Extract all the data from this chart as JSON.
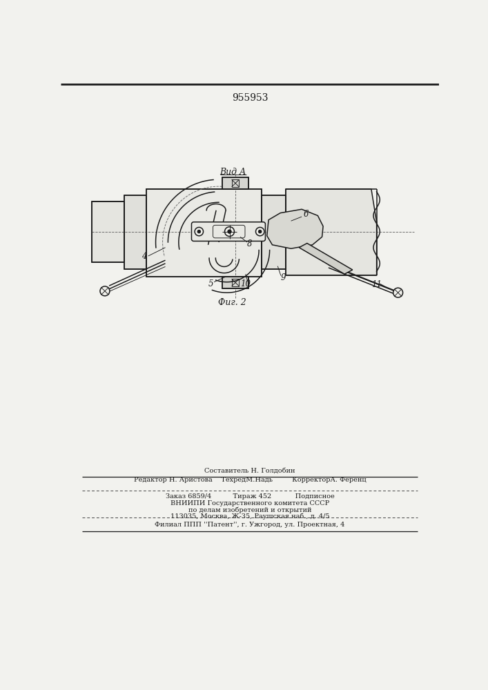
{
  "title": "955953",
  "view_label": "Вид А",
  "fig_label": "Фиг. 2",
  "footer_line1": "Составитель Н. Голдобин",
  "footer_line2": "Редактор Н. Аристова    ТехредМ.Надь         КорректорА. Ференц",
  "footer_line3": "Заказ 6859/4          Тираж 452           Подписное",
  "footer_line4": "ВНИИПИ Государственного комитета СССР",
  "footer_line5": "по делам изобретений и открытий",
  "footer_line6": "113035, Москва, Ж-35, Раушская наб., д. 4/5",
  "footer_line7": "Филиал ППП ''Патент'', г. Ужгород, ул. Проектная, 4",
  "bg_color": "#f2f2ee",
  "line_color": "#1a1a1a"
}
